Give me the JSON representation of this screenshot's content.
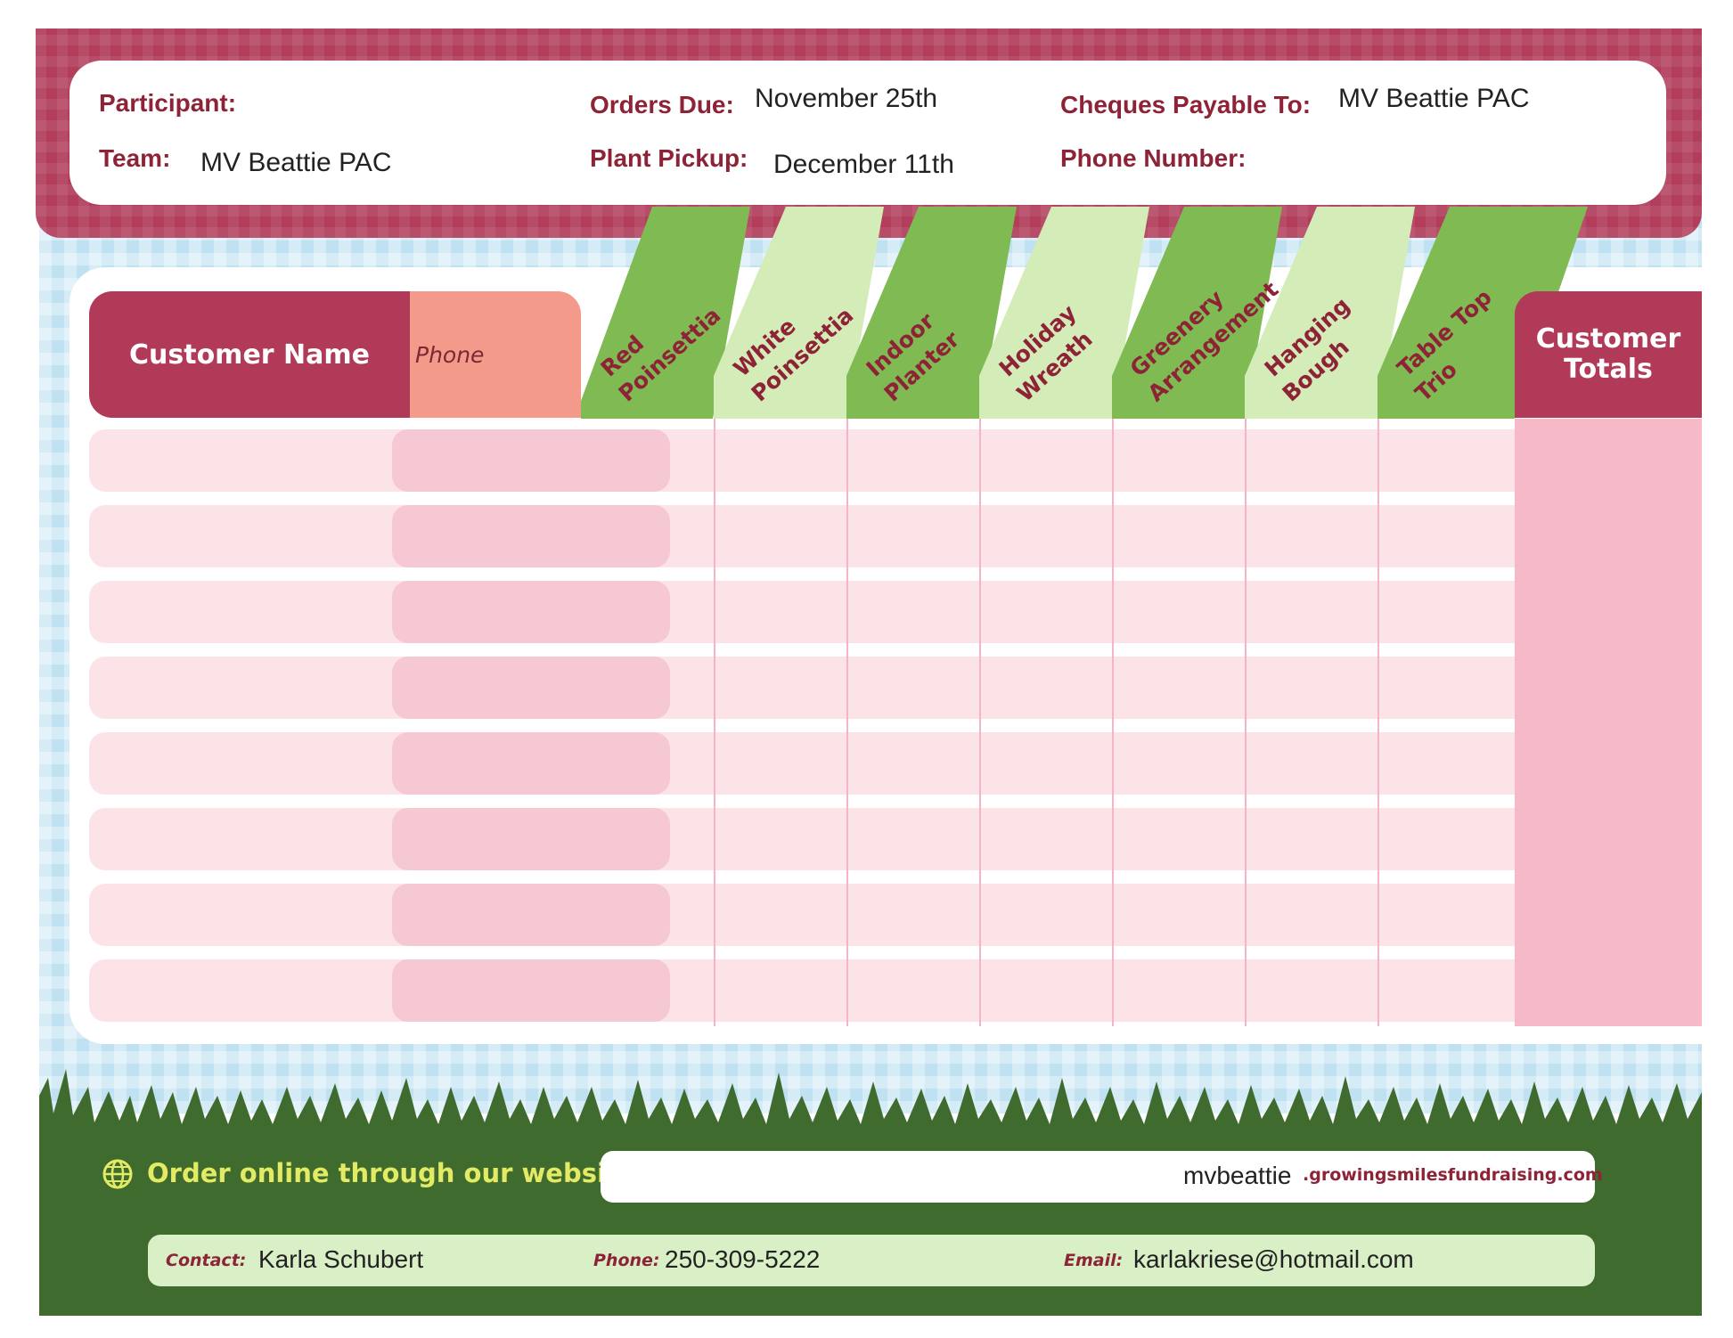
{
  "header": {
    "participant_label": "Participant:",
    "participant_value": "",
    "team_label": "Team:",
    "team_value": "MV Beattie PAC",
    "orders_due_label": "Orders Due:",
    "orders_due_value": "November 25th",
    "plant_pickup_label": "Plant Pickup:",
    "plant_pickup_value": "December 11th",
    "cheques_label": "Cheques Payable To:",
    "cheques_value": "MV Beattie PAC",
    "phone_label": "Phone Number:",
    "phone_value": ""
  },
  "table": {
    "customer_name_header": "Customer Name",
    "phone_header": "Phone",
    "totals_header_line1": "Customer",
    "totals_header_line2": "Totals",
    "products": [
      {
        "line1": "Red",
        "line2": "Poinsettia"
      },
      {
        "line1": "White",
        "line2": "Poinsettia"
      },
      {
        "line1": "Indoor",
        "line2": "Planter"
      },
      {
        "line1": "Holiday",
        "line2": "Wreath"
      },
      {
        "line1": "Greenery",
        "line2": "Arrangement"
      },
      {
        "line1": "Hanging",
        "line2": "Bough"
      },
      {
        "line1": "Table Top",
        "line2": "Trio"
      }
    ],
    "row_count": 8
  },
  "footer": {
    "order_online_label": "Order online through our website:",
    "website_subdomain": "mvbeattie",
    "website_domain": ".growingsmilesfundraising.com",
    "contact_label": "Contact:",
    "contact_value": "Karla Schubert",
    "phone_label": "Phone:",
    "phone_value": "250-309-5222",
    "email_label": "Email:",
    "email_value": "karlakriese@hotmail.com"
  },
  "colors": {
    "maroon": "#b03a57",
    "label_red": "#8e2337",
    "salmon": "#f39a8a",
    "green_dark_stripe": "#7fba52",
    "green_light_stripe": "#d3ecb8",
    "footer_green": "#3f6b2f",
    "sky_blue": "#bfe1f2"
  }
}
